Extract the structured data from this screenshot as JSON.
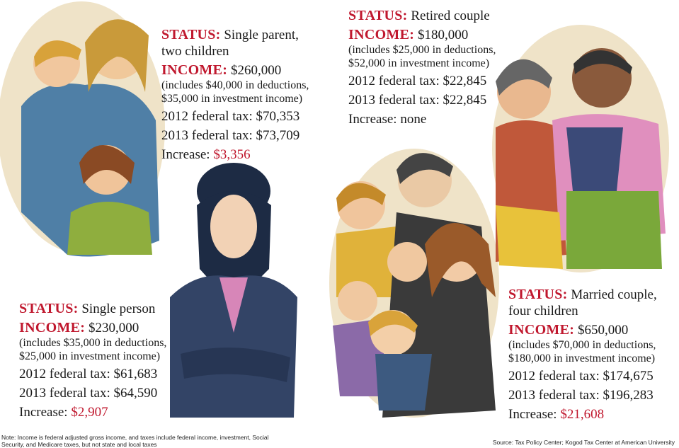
{
  "colors": {
    "accent": "#c0182e",
    "text": "#1a1a1a"
  },
  "illustrations": [
    {
      "name": "single-parent-family-illustration"
    },
    {
      "name": "single-woman-illustration"
    },
    {
      "name": "married-family-illustration"
    },
    {
      "name": "retired-couple-illustration"
    }
  ],
  "profiles": [
    {
      "status_label": "STATUS:",
      "status": "Single parent,",
      "status2": "two children",
      "income_label": "INCOME:",
      "income": "$260,000",
      "includes1": "(includes $40,000 in deductions,",
      "includes2": "$35,000 in investment income)",
      "tax2012": "2012 federal tax:  $70,353",
      "tax2013": "2013 federal tax:  $73,709",
      "increase_label": "Increase:",
      "increase": "$3,356"
    },
    {
      "status_label": "STATUS:",
      "status": "Retired couple",
      "income_label": "INCOME:",
      "income": "$180,000",
      "includes1": "(includes $25,000 in deductions,",
      "includes2": "$52,000 in investment income)",
      "tax2012": "2012 federal tax:  $22,845",
      "tax2013": "2013 federal tax:  $22,845",
      "increase_label": "Increase:",
      "increase": "none"
    },
    {
      "status_label": "STATUS:",
      "status": "Single person",
      "income_label": "INCOME:",
      "income": "$230,000",
      "includes1": "(includes $35,000 in deductions,",
      "includes2": "$25,000 in investment income)",
      "tax2012": "2012 federal tax:  $61,683",
      "tax2013": "2013 federal tax:  $64,590",
      "increase_label": "Increase:",
      "increase": "$2,907"
    },
    {
      "status_label": "STATUS:",
      "status": "Married couple,",
      "status2": "four children",
      "income_label": "INCOME:",
      "income": "$650,000",
      "includes1": "(includes $70,000 in deductions,",
      "includes2": "$180,000 in investment income)",
      "tax2012": "2012 federal tax:  $174,675",
      "tax2013": "2013 federal tax:  $196,283",
      "increase_label": "Increase:",
      "increase": "$21,608"
    }
  ],
  "note": "Note: Income is federal adjusted gross income, and taxes include federal income, investment, Social Security, and Medicare taxes, but not state and local taxes",
  "source": "Source: Tax Policy Center; Kogod Tax Center at American University"
}
